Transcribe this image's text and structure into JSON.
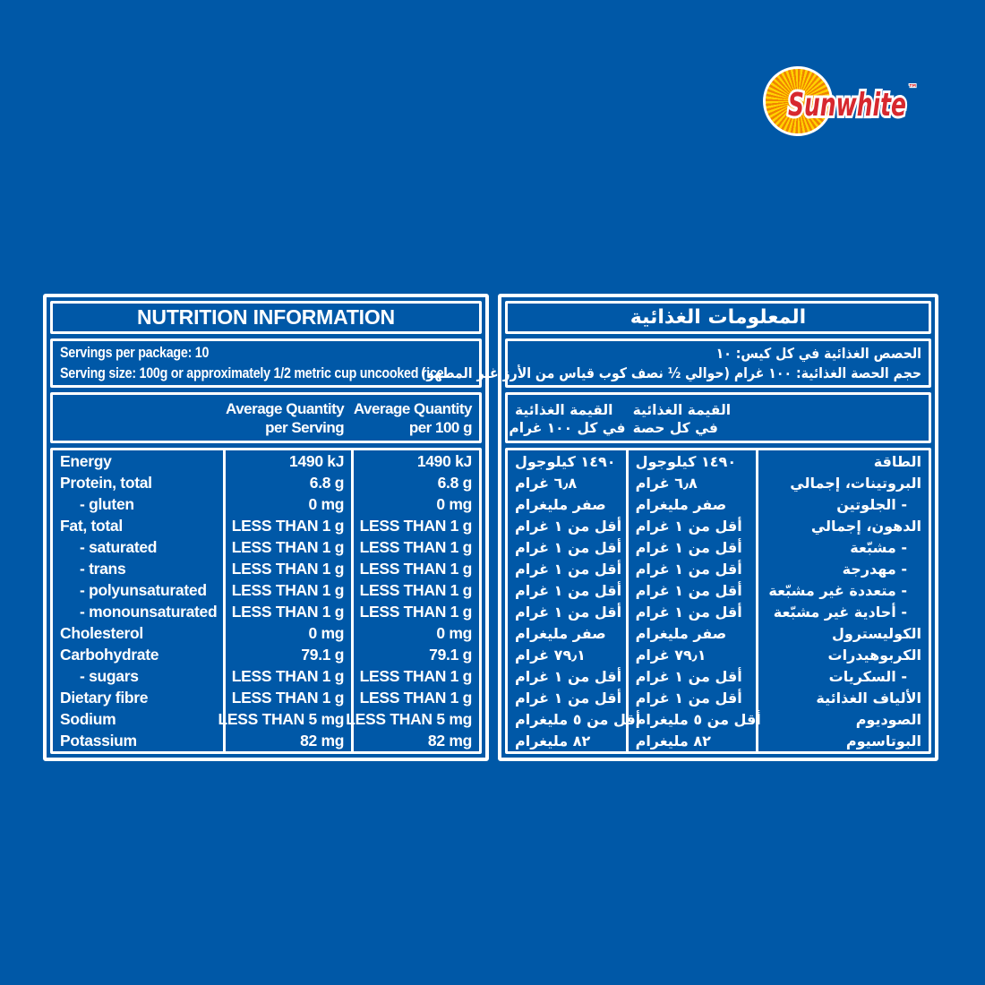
{
  "colors": {
    "background_blue": "#0058A7",
    "panel_border": "#FFFFFF",
    "text": "#FFFFFF",
    "brand_red": "#D7282E",
    "sun_yellow": "#FFD200",
    "sun_orange": "#F08300"
  },
  "logo": {
    "brand": "Sunwhite",
    "trademark": "™",
    "sun_icon": "sun-rays-disc"
  },
  "english_panel": {
    "title": "NUTRITION INFORMATION",
    "servings_line1": "Servings per package: 10",
    "servings_line2": "Serving size: 100g or approximately 1/2 metric cup uncooked rice",
    "col_serving": [
      "Average Quantity",
      "per Serving"
    ],
    "col_100g": [
      "Average Quantity",
      "per 100 g"
    ],
    "rows": [
      {
        "label": "Energy",
        "indent": false,
        "per_serving": "1490 kJ",
        "per_100g": "1490 kJ"
      },
      {
        "label": "Protein, total",
        "indent": false,
        "per_serving": "6.8 g",
        "per_100g": "6.8 g"
      },
      {
        "label": "- gluten",
        "indent": true,
        "per_serving": "0 mg",
        "per_100g": "0 mg"
      },
      {
        "label": "Fat, total",
        "indent": false,
        "per_serving": "LESS THAN 1 g",
        "per_100g": "LESS THAN 1 g"
      },
      {
        "label": "- saturated",
        "indent": true,
        "per_serving": "LESS THAN 1 g",
        "per_100g": "LESS THAN 1 g"
      },
      {
        "label": "- trans",
        "indent": true,
        "per_serving": "LESS THAN 1 g",
        "per_100g": "LESS THAN 1 g"
      },
      {
        "label": "- polyunsaturated",
        "indent": true,
        "per_serving": "LESS THAN 1 g",
        "per_100g": "LESS THAN 1 g"
      },
      {
        "label": "- monounsaturated",
        "indent": true,
        "per_serving": "LESS THAN 1 g",
        "per_100g": "LESS THAN 1 g"
      },
      {
        "label": "Cholesterol",
        "indent": false,
        "per_serving": "0 mg",
        "per_100g": "0 mg"
      },
      {
        "label": "Carbohydrate",
        "indent": false,
        "per_serving": "79.1 g",
        "per_100g": "79.1 g"
      },
      {
        "label": "- sugars",
        "indent": true,
        "per_serving": "LESS THAN 1 g",
        "per_100g": "LESS THAN 1 g"
      },
      {
        "label": "Dietary fibre",
        "indent": false,
        "per_serving": "LESS THAN 1 g",
        "per_100g": "LESS THAN 1 g"
      },
      {
        "label": "Sodium",
        "indent": false,
        "per_serving": "LESS THAN 5 mg",
        "per_100g": "LESS THAN 5 mg"
      },
      {
        "label": "Potassium",
        "indent": false,
        "per_serving": "82 mg",
        "per_100g": "82 mg"
      }
    ]
  },
  "arabic_panel": {
    "title": "المعلومات الغذائية",
    "servings_line1": "الحصص الغذائية في كل كيس: ١٠",
    "servings_line2": "حجم الحصة الغذائية: ١٠٠ غرام (حوالي ½ نصف كوب قياس من الأرز غير المطهو)",
    "col_serving": [
      "القيمة الغذائية",
      "في كل حصة"
    ],
    "col_100g": [
      "القيمة الغذائية",
      "في كل ١٠٠ غرام"
    ],
    "rows": [
      {
        "label": "الطاقة",
        "indent": false,
        "per_serving": "١٤٩٠ كيلوجول",
        "per_100g": "١٤٩٠ كيلوجول"
      },
      {
        "label": "البروتينات، إجمالي",
        "indent": false,
        "per_serving": "٦٫٨ غرام",
        "per_100g": "٦٫٨ غرام"
      },
      {
        "label": "- الجلوتين",
        "indent": true,
        "per_serving": "صفر مليغرام",
        "per_100g": "صفر مليغرام"
      },
      {
        "label": "الدهون، إجمالي",
        "indent": false,
        "per_serving": "أقل من ١ غرام",
        "per_100g": "أقل من ١ غرام"
      },
      {
        "label": "- مشبّعة",
        "indent": true,
        "per_serving": "أقل من ١ غرام",
        "per_100g": "أقل من ١ غرام"
      },
      {
        "label": "- مهدرجة",
        "indent": true,
        "per_serving": "أقل من ١ غرام",
        "per_100g": "أقل من ١ غرام"
      },
      {
        "label": "- متعددة غير مشبّعة",
        "indent": true,
        "per_serving": "أقل من ١ غرام",
        "per_100g": "أقل من ١ غرام"
      },
      {
        "label": "- أحادية غير مشبّعة",
        "indent": true,
        "per_serving": "أقل من ١ غرام",
        "per_100g": "أقل من ١ غرام"
      },
      {
        "label": "الكوليسترول",
        "indent": false,
        "per_serving": "صفر مليغرام",
        "per_100g": "صفر مليغرام"
      },
      {
        "label": "الكربوهيدرات",
        "indent": false,
        "per_serving": "٧٩٫١ غرام",
        "per_100g": "٧٩٫١ غرام"
      },
      {
        "label": "- السكريات",
        "indent": true,
        "per_serving": "أقل من ١ غرام",
        "per_100g": "أقل من ١ غرام"
      },
      {
        "label": "الألياف الغذائية",
        "indent": false,
        "per_serving": "أقل من ١ غرام",
        "per_100g": "أقل من ١ غرام"
      },
      {
        "label": "الصوديوم",
        "indent": false,
        "per_serving": "أقل من ٥ مليغرام",
        "per_100g": "أقل من ٥ مليغرام"
      },
      {
        "label": "البوتاسيوم",
        "indent": false,
        "per_serving": "٨٢ مليغرام",
        "per_100g": "٨٢ مليغرام"
      }
    ]
  }
}
